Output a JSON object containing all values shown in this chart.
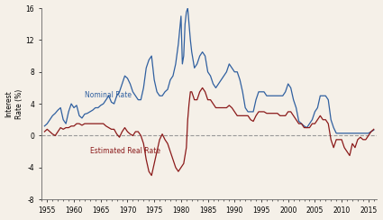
{
  "title": "",
  "ylabel": "Interest\nRate (%)",
  "xlim": [
    1954,
    2016.5
  ],
  "ylim": [
    -8,
    16
  ],
  "yticks": [
    -8,
    -4,
    0,
    4,
    8,
    12,
    16
  ],
  "xticks": [
    1955,
    1960,
    1965,
    1970,
    1975,
    1980,
    1985,
    1990,
    1995,
    2000,
    2005,
    2010,
    2015
  ],
  "nominal_color": "#3060a0",
  "real_color": "#8b1a1a",
  "zero_line_color": "#999999",
  "background_color": "#f5f0e8",
  "label_nominal": "Nominal Rate",
  "label_real": "Estimated Real Rate",
  "nominal_data": {
    "years": [
      1954.5,
      1955,
      1955.5,
      1956,
      1956.5,
      1957,
      1957.5,
      1958,
      1958.5,
      1959,
      1959.5,
      1960,
      1960.5,
      1961,
      1961.5,
      1962,
      1962.5,
      1963,
      1963.5,
      1964,
      1964.5,
      1965,
      1965.5,
      1966,
      1966.5,
      1967,
      1967.5,
      1968,
      1968.5,
      1969,
      1969.5,
      1970,
      1970.5,
      1971,
      1971.5,
      1972,
      1972.5,
      1973,
      1973.5,
      1974,
      1974.5,
      1975,
      1975.5,
      1976,
      1976.5,
      1977,
      1977.5,
      1978,
      1978.5,
      1979,
      1979.5,
      1980,
      1980.25,
      1980.5,
      1980.75,
      1981,
      1981.25,
      1981.5,
      1981.75,
      1982,
      1982.5,
      1983,
      1983.5,
      1984,
      1984.5,
      1985,
      1985.5,
      1986,
      1986.5,
      1987,
      1987.5,
      1988,
      1988.5,
      1989,
      1989.5,
      1990,
      1990.5,
      1991,
      1991.5,
      1992,
      1992.5,
      1993,
      1993.5,
      1994,
      1994.5,
      1995,
      1995.5,
      1996,
      1996.5,
      1997,
      1997.5,
      1998,
      1998.5,
      1999,
      1999.5,
      2000,
      2000.5,
      2001,
      2001.5,
      2002,
      2002.5,
      2003,
      2003.5,
      2004,
      2004.5,
      2005,
      2005.5,
      2006,
      2006.5,
      2007,
      2007.5,
      2008,
      2008.5,
      2009,
      2009.5,
      2010,
      2010.5,
      2011,
      2011.5,
      2012,
      2012.5,
      2013,
      2013.5,
      2014,
      2014.5,
      2015,
      2015.5,
      2016
    ],
    "values": [
      1.2,
      1.5,
      2.0,
      2.5,
      2.8,
      3.2,
      3.5,
      2.0,
      1.5,
      3.0,
      4.0,
      3.5,
      3.8,
      2.5,
      2.2,
      2.7,
      2.8,
      3.0,
      3.2,
      3.5,
      3.5,
      3.8,
      4.0,
      4.5,
      5.0,
      4.2,
      4.0,
      5.0,
      5.5,
      6.5,
      7.5,
      7.2,
      6.5,
      5.5,
      5.0,
      4.5,
      4.5,
      6.0,
      8.5,
      9.5,
      10.0,
      7.0,
      5.5,
      5.0,
      5.0,
      5.5,
      5.8,
      7.0,
      7.5,
      9.0,
      11.5,
      15.0,
      9.0,
      10.0,
      14.0,
      15.5,
      16.0,
      14.0,
      12.0,
      10.5,
      8.5,
      9.0,
      10.0,
      10.5,
      10.0,
      8.0,
      7.5,
      6.5,
      6.0,
      6.5,
      7.0,
      7.5,
      8.0,
      9.0,
      8.5,
      8.0,
      8.0,
      7.0,
      5.5,
      3.5,
      3.0,
      3.0,
      3.0,
      4.5,
      5.5,
      5.5,
      5.5,
      5.0,
      5.0,
      5.0,
      5.0,
      5.0,
      5.0,
      5.0,
      5.5,
      6.5,
      6.0,
      4.5,
      3.5,
      1.8,
      1.5,
      1.2,
      1.0,
      1.5,
      2.0,
      3.0,
      3.5,
      5.0,
      5.0,
      5.0,
      4.5,
      2.0,
      1.0,
      0.3,
      0.3,
      0.3,
      0.3,
      0.3,
      0.3,
      0.3,
      0.3,
      0.3,
      0.3,
      0.3,
      0.3,
      0.3,
      0.5,
      0.7
    ]
  },
  "real_data": {
    "years": [
      1954.5,
      1955,
      1955.5,
      1956,
      1956.5,
      1957,
      1957.5,
      1958,
      1958.5,
      1959,
      1959.5,
      1960,
      1960.5,
      1961,
      1961.5,
      1962,
      1962.5,
      1963,
      1963.5,
      1964,
      1964.5,
      1965,
      1965.5,
      1966,
      1966.5,
      1967,
      1967.5,
      1968,
      1968.5,
      1969,
      1969.5,
      1970,
      1970.5,
      1971,
      1971.5,
      1972,
      1972.5,
      1973,
      1973.5,
      1974,
      1974.5,
      1975,
      1975.5,
      1976,
      1976.5,
      1977,
      1977.5,
      1978,
      1978.5,
      1979,
      1979.5,
      1980,
      1980.5,
      1981,
      1981.25,
      1981.5,
      1981.75,
      1982,
      1982.5,
      1983,
      1983.5,
      1984,
      1984.5,
      1985,
      1985.5,
      1986,
      1986.5,
      1987,
      1987.5,
      1988,
      1988.5,
      1989,
      1989.5,
      1990,
      1990.5,
      1991,
      1991.5,
      1992,
      1992.5,
      1993,
      1993.5,
      1994,
      1994.5,
      1995,
      1995.5,
      1996,
      1996.5,
      1997,
      1997.5,
      1998,
      1998.5,
      1999,
      1999.5,
      2000,
      2000.5,
      2001,
      2001.5,
      2002,
      2002.5,
      2003,
      2003.5,
      2004,
      2004.5,
      2005,
      2005.5,
      2006,
      2006.5,
      2007,
      2007.5,
      2008,
      2008.5,
      2009,
      2009.5,
      2010,
      2010.5,
      2011,
      2011.5,
      2012,
      2012.5,
      2013,
      2013.5,
      2014,
      2014.5,
      2015,
      2015.5,
      2016
    ],
    "values": [
      0.5,
      0.8,
      0.5,
      0.2,
      0.0,
      0.5,
      1.0,
      0.8,
      1.0,
      1.0,
      1.2,
      1.2,
      1.5,
      1.5,
      1.3,
      1.5,
      1.5,
      1.5,
      1.5,
      1.5,
      1.5,
      1.5,
      1.5,
      1.2,
      1.0,
      0.8,
      0.8,
      0.2,
      -0.2,
      0.5,
      1.0,
      0.5,
      0.2,
      0.0,
      0.5,
      0.5,
      0.0,
      -1.0,
      -3.0,
      -4.5,
      -5.0,
      -3.5,
      -2.0,
      -0.5,
      0.2,
      -0.5,
      -1.0,
      -2.0,
      -3.0,
      -4.0,
      -4.5,
      -4.0,
      -3.5,
      -1.5,
      2.0,
      4.0,
      5.5,
      5.5,
      4.5,
      4.5,
      5.5,
      6.0,
      5.5,
      4.5,
      4.5,
      4.0,
      3.5,
      3.5,
      3.5,
      3.5,
      3.5,
      3.8,
      3.5,
      3.0,
      2.5,
      2.5,
      2.5,
      2.5,
      2.5,
      2.0,
      1.8,
      2.5,
      3.0,
      3.0,
      3.0,
      2.8,
      2.8,
      2.8,
      2.8,
      2.8,
      2.5,
      2.5,
      2.5,
      3.0,
      3.0,
      2.5,
      2.0,
      1.5,
      1.5,
      1.0,
      1.0,
      1.0,
      1.5,
      1.5,
      2.0,
      2.5,
      2.0,
      2.0,
      1.5,
      -0.5,
      -1.5,
      -0.5,
      -0.5,
      -0.5,
      -1.5,
      -2.0,
      -2.5,
      -1.0,
      -1.5,
      -0.5,
      -0.2,
      -0.5,
      -0.5,
      0.0,
      0.5,
      0.8
    ]
  }
}
